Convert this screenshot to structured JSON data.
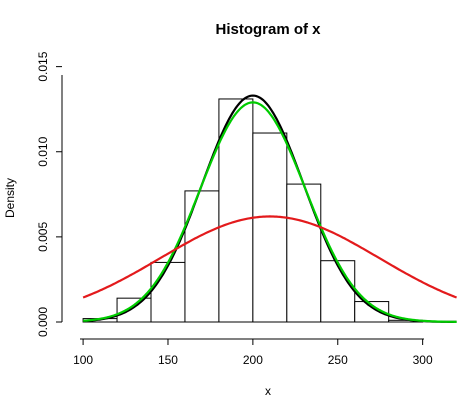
{
  "chart_data": {
    "type": "histogram",
    "title": "Histogram of x",
    "xlabel": "x",
    "ylabel": "Density",
    "xlim": [
      97,
      322
    ],
    "ylim": [
      0,
      0.0158
    ],
    "x_ticks": [
      100,
      150,
      200,
      250,
      300
    ],
    "x_tick_labels": [
      "100",
      "150",
      "200",
      "250",
      "300"
    ],
    "y_ticks": [
      0,
      0.005,
      0.01,
      0.015
    ],
    "y_tick_labels": [
      "0.000",
      "0.005",
      "0.010",
      "0.015"
    ],
    "grid": false,
    "bins": [
      {
        "start": 100,
        "end": 120,
        "density": 0.0002
      },
      {
        "start": 120,
        "end": 140,
        "density": 0.0014
      },
      {
        "start": 140,
        "end": 160,
        "density": 0.0035
      },
      {
        "start": 160,
        "end": 180,
        "density": 0.0077
      },
      {
        "start": 180,
        "end": 200,
        "density": 0.0131
      },
      {
        "start": 200,
        "end": 220,
        "density": 0.0111
      },
      {
        "start": 220,
        "end": 240,
        "density": 0.0081
      },
      {
        "start": 240,
        "end": 260,
        "density": 0.0036
      },
      {
        "start": 260,
        "end": 280,
        "density": 0.0012
      },
      {
        "start": 280,
        "end": 300,
        "density": 0.0001
      }
    ],
    "curves": [
      {
        "color": "#000000",
        "peak_x": 200,
        "peak_density": 0.0133,
        "x_range": [
          100,
          320
        ]
      },
      {
        "color": "#00cc00",
        "peak_x": 200,
        "peak_density": 0.0129,
        "x_range": [
          100,
          320
        ]
      },
      {
        "color": "#e31a1c",
        "peak_x": 210,
        "peak_density": 0.0062,
        "x_range": [
          100,
          320
        ]
      }
    ]
  }
}
